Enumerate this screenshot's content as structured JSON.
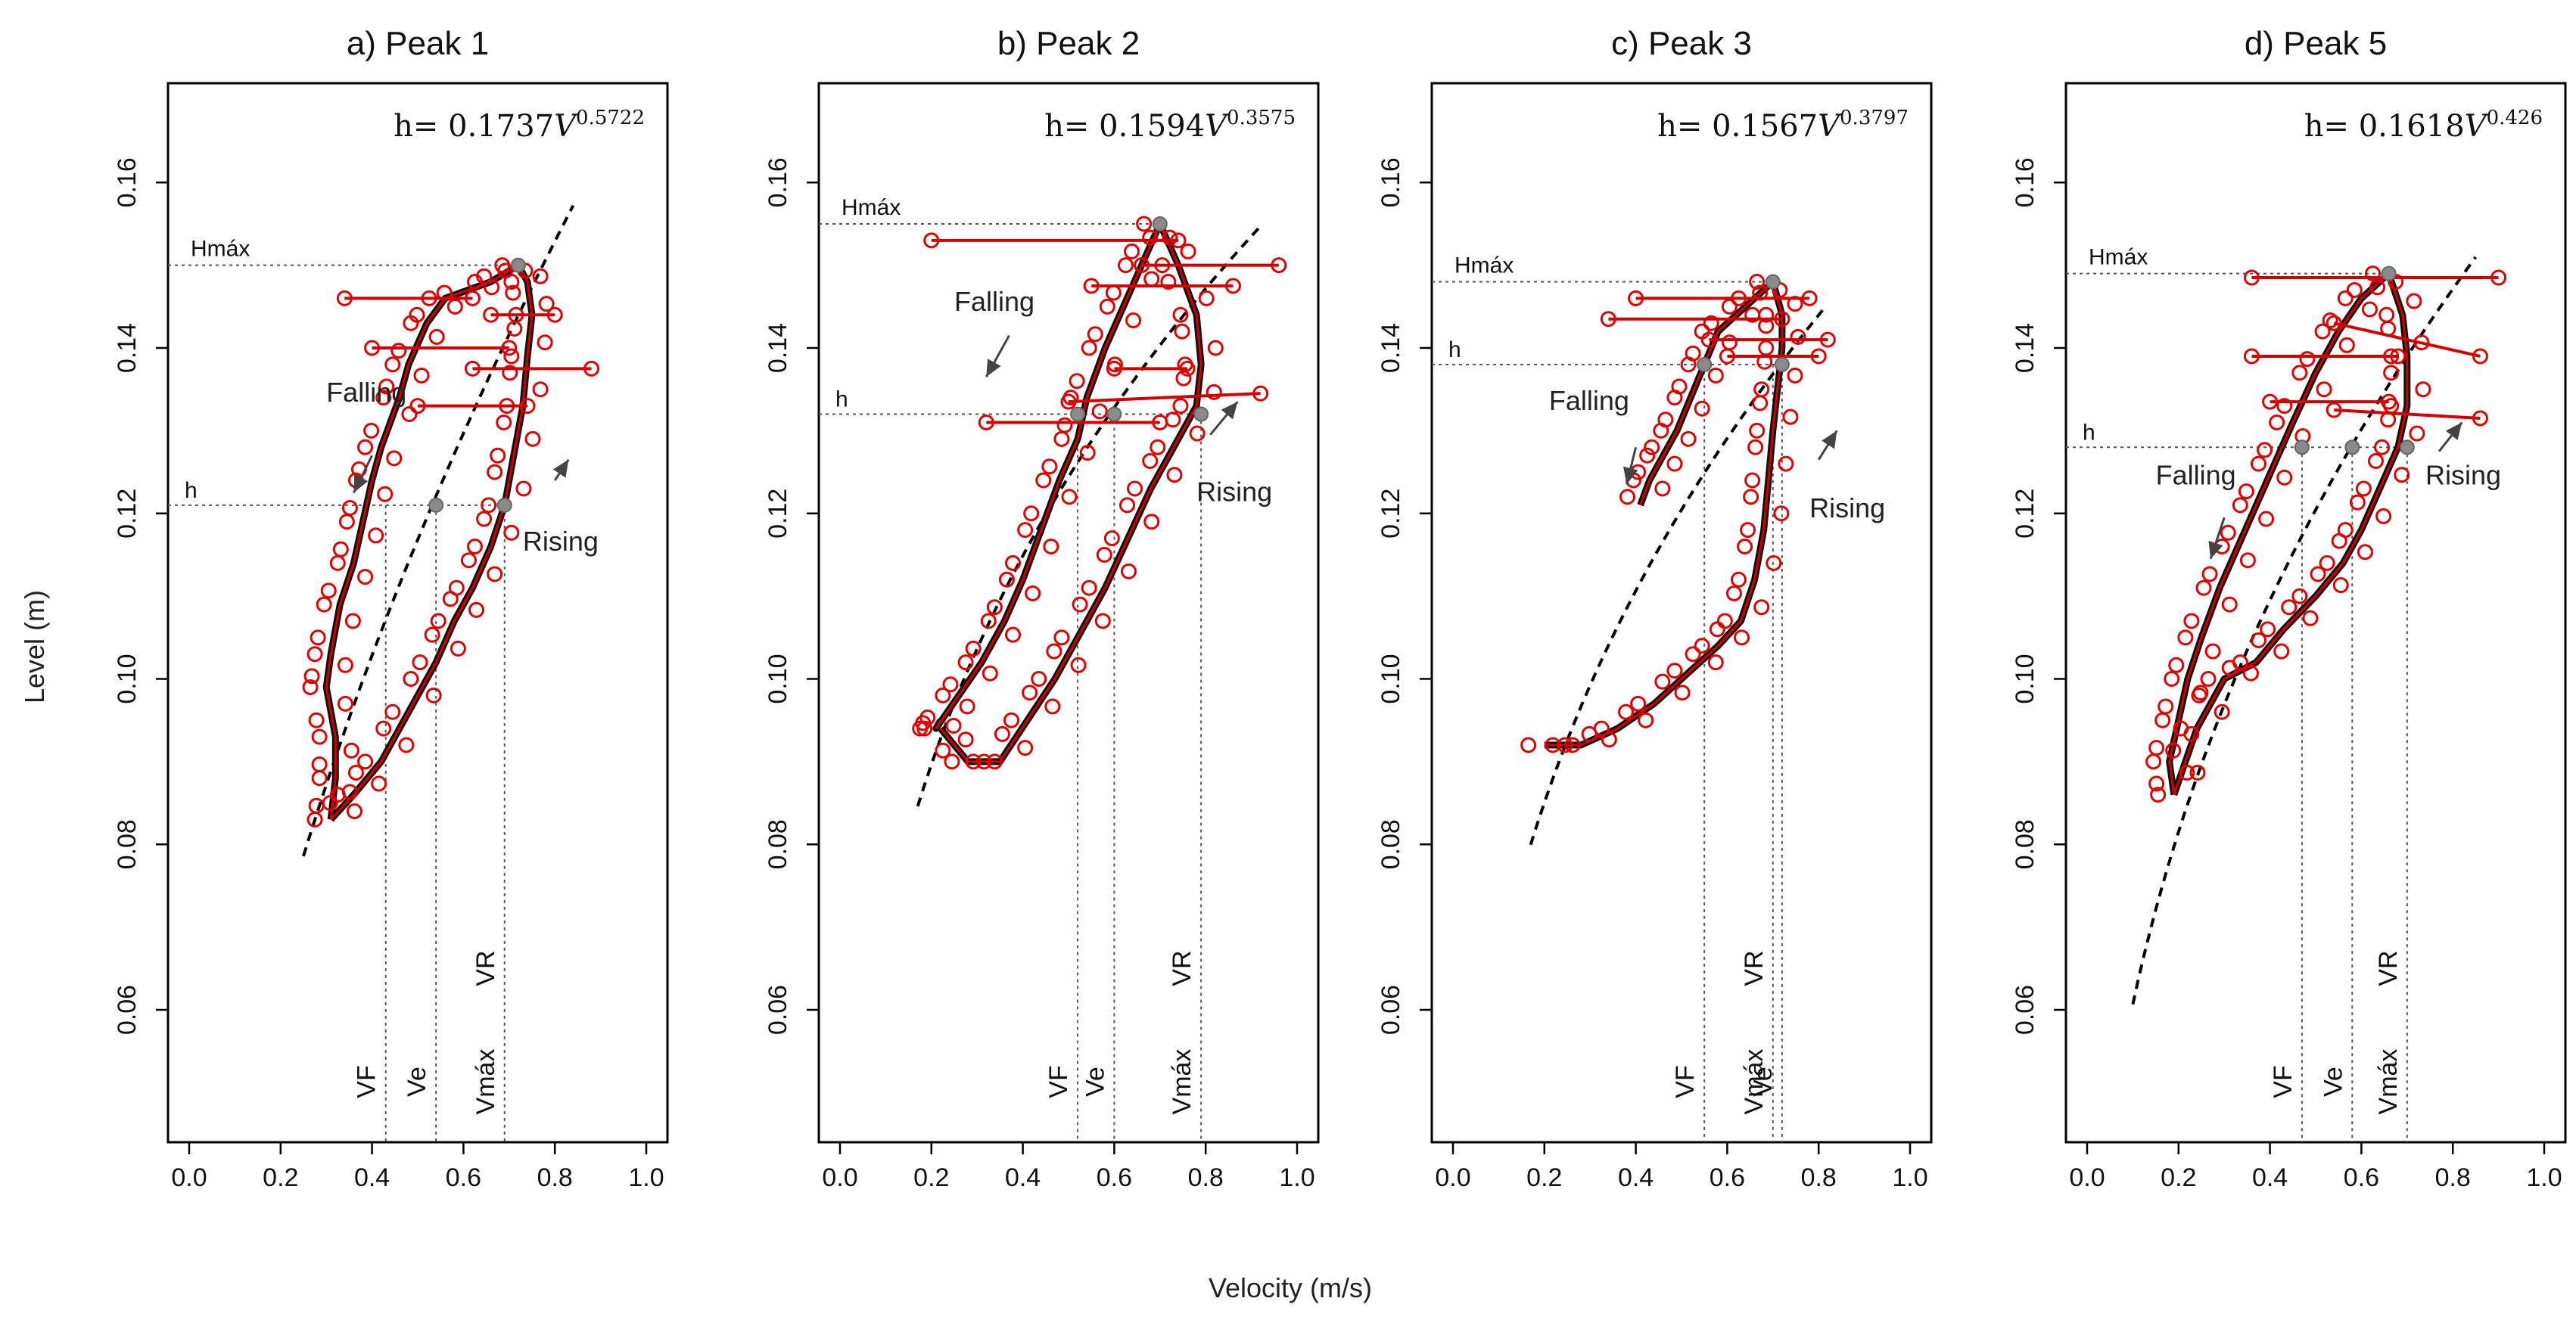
{
  "figure": {
    "ylabel": "Level (m)",
    "xlabel": "Velocity (m/s)"
  },
  "chart_data": [
    {
      "type": "scatter",
      "title": "a) Peak 1",
      "equation": {
        "prefix": "h= ",
        "coef": "0.1737",
        "var": "V",
        "exp": "0.5722"
      },
      "xlim": [
        0.0,
        1.0
      ],
      "ylim": [
        0.044,
        0.172
      ],
      "xticks": [
        "0.0",
        "0.2",
        "0.4",
        "0.6",
        "0.8",
        "1.0"
      ],
      "yticks": [
        "0.06",
        "0.08",
        "0.10",
        "0.12",
        "0.14",
        "0.16"
      ],
      "hmax": 0.15,
      "h": 0.121,
      "vlines": [
        {
          "x": 0.43,
          "label": "VF",
          "top": 0.121
        },
        {
          "x": 0.54,
          "label": "Ve",
          "top": 0.121
        },
        {
          "x": 0.69,
          "label": "Vmáx",
          "top": 0.121
        },
        {
          "x": 0.69,
          "label": "VR",
          "top": 0.121
        }
      ],
      "hline_labels": {
        "hmax": "Hmáx",
        "h": "h"
      },
      "annotations": [
        {
          "text": "Falling",
          "x": 0.3,
          "y": 0.1335,
          "arrow_from": [
            0.4,
            0.127
          ],
          "arrow_to": [
            0.36,
            0.1225
          ]
        },
        {
          "text": "Rising",
          "x": 0.73,
          "y": 0.1155,
          "arrow_from": [
            0.8,
            0.124
          ],
          "arrow_to": [
            0.83,
            0.1265
          ]
        }
      ],
      "series": [
        {
          "name": "Falling limb",
          "points": [
            [
              0.72,
              0.15
            ],
            [
              0.66,
              0.148
            ],
            [
              0.56,
              0.146
            ],
            [
              0.52,
              0.143
            ],
            [
              0.48,
              0.138
            ],
            [
              0.46,
              0.134
            ],
            [
              0.42,
              0.128
            ],
            [
              0.4,
              0.124
            ],
            [
              0.38,
              0.119
            ],
            [
              0.36,
              0.114
            ],
            [
              0.33,
              0.109
            ],
            [
              0.31,
              0.103
            ],
            [
              0.3,
              0.099
            ],
            [
              0.32,
              0.093
            ],
            [
              0.32,
              0.088
            ],
            [
              0.31,
              0.083
            ]
          ]
        },
        {
          "name": "Rising limb",
          "points": [
            [
              0.31,
              0.083
            ],
            [
              0.36,
              0.086
            ],
            [
              0.42,
              0.09
            ],
            [
              0.48,
              0.096
            ],
            [
              0.54,
              0.102
            ],
            [
              0.58,
              0.107
            ],
            [
              0.62,
              0.111
            ],
            [
              0.66,
              0.116
            ],
            [
              0.69,
              0.121
            ],
            [
              0.71,
              0.127
            ],
            [
              0.73,
              0.133
            ],
            [
              0.74,
              0.139
            ],
            [
              0.75,
              0.144
            ],
            [
              0.74,
              0.148
            ],
            [
              0.72,
              0.15
            ]
          ]
        },
        {
          "name": "Falling horizontal",
          "points": [
            [
              0.34,
              0.146
            ],
            [
              0.62,
              0.146
            ],
            [
              0.4,
              0.14
            ],
            [
              0.7,
              0.14
            ],
            [
              0.62,
              0.1375
            ],
            [
              0.88,
              0.1375
            ],
            [
              0.66,
              0.144
            ],
            [
              0.8,
              0.144
            ],
            [
              0.5,
              0.133
            ],
            [
              0.74,
              0.133
            ]
          ]
        }
      ],
      "fit": {
        "coef": 0.1737,
        "exp": 0.5722,
        "x_range": [
          0.25,
          0.84
        ]
      },
      "marks": [
        [
          0.72,
          0.15
        ],
        [
          0.54,
          0.121
        ],
        [
          0.69,
          0.121
        ]
      ]
    },
    {
      "type": "scatter",
      "title": "b) Peak 2",
      "equation": {
        "prefix": "h= ",
        "coef": "0.1594",
        "var": "V",
        "exp": "0.3575"
      },
      "xlim": [
        0.0,
        1.0
      ],
      "ylim": [
        0.044,
        0.172
      ],
      "xticks": [
        "0.0",
        "0.2",
        "0.4",
        "0.6",
        "0.8",
        "1.0"
      ],
      "yticks": [
        "0.06",
        "0.08",
        "0.10",
        "0.12",
        "0.14",
        "0.16"
      ],
      "hmax": 0.155,
      "h": 0.132,
      "vlines": [
        {
          "x": 0.52,
          "label": "VF",
          "top": 0.132
        },
        {
          "x": 0.6,
          "label": "Ve",
          "top": 0.132
        },
        {
          "x": 0.79,
          "label": "Vmáx",
          "top": 0.132
        },
        {
          "x": 0.79,
          "label": "VR",
          "top": 0.132
        }
      ],
      "hline_labels": {
        "hmax": "Hmáx",
        "h": "h"
      },
      "annotations": [
        {
          "text": "Falling",
          "x": 0.25,
          "y": 0.1445,
          "arrow_from": [
            0.37,
            0.1415
          ],
          "arrow_to": [
            0.32,
            0.1365
          ]
        },
        {
          "text": "Rising",
          "x": 0.78,
          "y": 0.1215,
          "arrow_from": [
            0.81,
            0.1295
          ],
          "arrow_to": [
            0.87,
            0.1335
          ]
        }
      ],
      "series": [
        {
          "name": "Falling limb",
          "points": [
            [
              0.7,
              0.155
            ],
            [
              0.66,
              0.15
            ],
            [
              0.62,
              0.145
            ],
            [
              0.58,
              0.14
            ],
            [
              0.54,
              0.134
            ],
            [
              0.52,
              0.129
            ],
            [
              0.48,
              0.124
            ],
            [
              0.44,
              0.118
            ],
            [
              0.4,
              0.112
            ],
            [
              0.36,
              0.107
            ],
            [
              0.31,
              0.102
            ],
            [
              0.26,
              0.098
            ],
            [
              0.21,
              0.094
            ],
            [
              0.22,
              0.095
            ]
          ]
        },
        {
          "name": "Rising limb",
          "points": [
            [
              0.22,
              0.094
            ],
            [
              0.28,
              0.09
            ],
            [
              0.35,
              0.09
            ],
            [
              0.41,
              0.095
            ],
            [
              0.47,
              0.1
            ],
            [
              0.52,
              0.105
            ],
            [
              0.58,
              0.111
            ],
            [
              0.63,
              0.117
            ],
            [
              0.68,
              0.123
            ],
            [
              0.73,
              0.128
            ],
            [
              0.78,
              0.133
            ],
            [
              0.79,
              0.138
            ],
            [
              0.78,
              0.144
            ],
            [
              0.74,
              0.15
            ],
            [
              0.7,
              0.155
            ]
          ]
        },
        {
          "name": "Falling horizontal",
          "points": [
            [
              0.2,
              0.153
            ],
            [
              0.74,
              0.153
            ],
            [
              0.66,
              0.15
            ],
            [
              0.96,
              0.15
            ],
            [
              0.55,
              0.1475
            ],
            [
              0.86,
              0.1475
            ],
            [
              0.6,
              0.1375
            ],
            [
              0.76,
              0.1375
            ],
            [
              0.5,
              0.1335
            ],
            [
              0.92,
              0.1345
            ],
            [
              0.32,
              0.131
            ],
            [
              0.7,
              0.131
            ]
          ]
        }
      ],
      "fit": {
        "coef": 0.1594,
        "exp": 0.3575,
        "x_range": [
          0.17,
          0.92
        ]
      },
      "marks": [
        [
          0.7,
          0.155
        ],
        [
          0.52,
          0.132
        ],
        [
          0.6,
          0.132
        ],
        [
          0.79,
          0.132
        ]
      ]
    },
    {
      "type": "scatter",
      "title": "c) Peak 3",
      "equation": {
        "prefix": "h= ",
        "coef": "0.1567",
        "var": "V",
        "exp": "0.3797"
      },
      "xlim": [
        0.0,
        1.0
      ],
      "ylim": [
        0.044,
        0.172
      ],
      "xticks": [
        "0.0",
        "0.2",
        "0.4",
        "0.6",
        "0.8",
        "1.0"
      ],
      "yticks": [
        "0.06",
        "0.08",
        "0.10",
        "0.12",
        "0.14",
        "0.16"
      ],
      "hmax": 0.148,
      "h": 0.138,
      "vlines": [
        {
          "x": 0.55,
          "label": "VF",
          "top": 0.138
        },
        {
          "x": 0.7,
          "label": "Vmáx",
          "top": 0.138
        },
        {
          "x": 0.7,
          "label": "VR",
          "top": 0.138
        },
        {
          "x": 0.72,
          "label": "Ve",
          "top": 0.138
        }
      ],
      "hline_labels": {
        "hmax": "Hmáx",
        "h": "h"
      },
      "annotations": [
        {
          "text": "Falling",
          "x": 0.21,
          "y": 0.1325,
          "arrow_from": [
            0.4,
            0.128
          ],
          "arrow_to": [
            0.38,
            0.1235
          ]
        },
        {
          "text": "Rising",
          "x": 0.78,
          "y": 0.1195,
          "arrow_from": [
            0.8,
            0.1265
          ],
          "arrow_to": [
            0.84,
            0.13
          ]
        }
      ],
      "series": [
        {
          "name": "Falling limb",
          "points": [
            [
              0.7,
              0.148
            ],
            [
              0.64,
              0.145
            ],
            [
              0.58,
              0.142
            ],
            [
              0.55,
              0.138
            ],
            [
              0.52,
              0.134
            ],
            [
              0.49,
              0.13
            ],
            [
              0.46,
              0.127
            ],
            [
              0.43,
              0.124
            ],
            [
              0.41,
              0.121
            ]
          ]
        },
        {
          "name": "Rising limb",
          "points": [
            [
              0.2,
              0.092
            ],
            [
              0.28,
              0.092
            ],
            [
              0.36,
              0.094
            ],
            [
              0.44,
              0.097
            ],
            [
              0.52,
              0.101
            ],
            [
              0.58,
              0.104
            ],
            [
              0.63,
              0.107
            ],
            [
              0.66,
              0.112
            ],
            [
              0.68,
              0.118
            ],
            [
              0.69,
              0.124
            ],
            [
              0.7,
              0.13
            ],
            [
              0.71,
              0.135
            ],
            [
              0.72,
              0.14
            ],
            [
              0.72,
              0.144
            ],
            [
              0.7,
              0.148
            ]
          ]
        },
        {
          "name": "Falling horizontal",
          "points": [
            [
              0.34,
              0.1435
            ],
            [
              0.72,
              0.1435
            ],
            [
              0.4,
              0.146
            ],
            [
              0.78,
              0.146
            ],
            [
              0.56,
              0.141
            ],
            [
              0.82,
              0.141
            ],
            [
              0.6,
              0.139
            ],
            [
              0.8,
              0.139
            ]
          ]
        }
      ],
      "fit": {
        "coef": 0.1567,
        "exp": 0.3797,
        "x_range": [
          0.17,
          0.81
        ]
      },
      "marks": [
        [
          0.7,
          0.148
        ],
        [
          0.55,
          0.138
        ],
        [
          0.72,
          0.138
        ]
      ]
    },
    {
      "type": "scatter",
      "title": "d) Peak 5",
      "equation": {
        "prefix": "h= ",
        "coef": "0.1618",
        "var": "V",
        "exp": "0.426"
      },
      "xlim": [
        0.0,
        1.0
      ],
      "ylim": [
        0.044,
        0.172
      ],
      "xticks": [
        "0.0",
        "0.2",
        "0.4",
        "0.6",
        "0.8",
        "1.0"
      ],
      "yticks": [
        "0.06",
        "0.08",
        "0.10",
        "0.12",
        "0.14",
        "0.16"
      ],
      "hmax": 0.149,
      "h": 0.128,
      "vlines": [
        {
          "x": 0.47,
          "label": "VF",
          "top": 0.128
        },
        {
          "x": 0.58,
          "label": "Ve",
          "top": 0.128
        },
        {
          "x": 0.7,
          "label": "Vmáx",
          "top": 0.128
        },
        {
          "x": 0.7,
          "label": "VR",
          "top": 0.128
        }
      ],
      "hline_labels": {
        "hmax": "Hmáx",
        "h": "h"
      },
      "annotations": [
        {
          "text": "Falling",
          "x": 0.15,
          "y": 0.1235,
          "arrow_from": [
            0.3,
            0.1195
          ],
          "arrow_to": [
            0.27,
            0.1145
          ]
        },
        {
          "text": "Rising",
          "x": 0.74,
          "y": 0.1235,
          "arrow_from": [
            0.77,
            0.1275
          ],
          "arrow_to": [
            0.82,
            0.131
          ]
        }
      ],
      "series": [
        {
          "name": "Falling limb",
          "points": [
            [
              0.66,
              0.149
            ],
            [
              0.6,
              0.146
            ],
            [
              0.55,
              0.142
            ],
            [
              0.5,
              0.137
            ],
            [
              0.45,
              0.131
            ],
            [
              0.41,
              0.126
            ],
            [
              0.37,
              0.121
            ],
            [
              0.33,
              0.116
            ],
            [
              0.29,
              0.111
            ],
            [
              0.25,
              0.105
            ],
            [
              0.22,
              0.1
            ],
            [
              0.2,
              0.095
            ],
            [
              0.18,
              0.09
            ],
            [
              0.19,
              0.086
            ]
          ]
        },
        {
          "name": "Rising limb",
          "points": [
            [
              0.19,
              0.086
            ],
            [
              0.24,
              0.094
            ],
            [
              0.3,
              0.1
            ],
            [
              0.37,
              0.102
            ],
            [
              0.43,
              0.106
            ],
            [
              0.5,
              0.11
            ],
            [
              0.56,
              0.114
            ],
            [
              0.6,
              0.118
            ],
            [
              0.64,
              0.123
            ],
            [
              0.68,
              0.128
            ],
            [
              0.7,
              0.133
            ],
            [
              0.7,
              0.139
            ],
            [
              0.69,
              0.144
            ],
            [
              0.66,
              0.149
            ]
          ]
        },
        {
          "name": "Falling horizontal",
          "points": [
            [
              0.36,
              0.1485
            ],
            [
              0.9,
              0.1485
            ],
            [
              0.36,
              0.139
            ],
            [
              0.68,
              0.139
            ],
            [
              0.54,
              0.143
            ],
            [
              0.86,
              0.139
            ],
            [
              0.54,
              0.1325
            ],
            [
              0.86,
              0.1315
            ],
            [
              0.4,
              0.1335
            ],
            [
              0.66,
              0.1335
            ]
          ]
        }
      ],
      "fit": {
        "coef": 0.1618,
        "exp": 0.426,
        "x_range": [
          0.1,
          0.85
        ]
      },
      "marks": [
        [
          0.66,
          0.149
        ],
        [
          0.47,
          0.128
        ],
        [
          0.58,
          0.128
        ],
        [
          0.7,
          0.128
        ]
      ]
    }
  ]
}
